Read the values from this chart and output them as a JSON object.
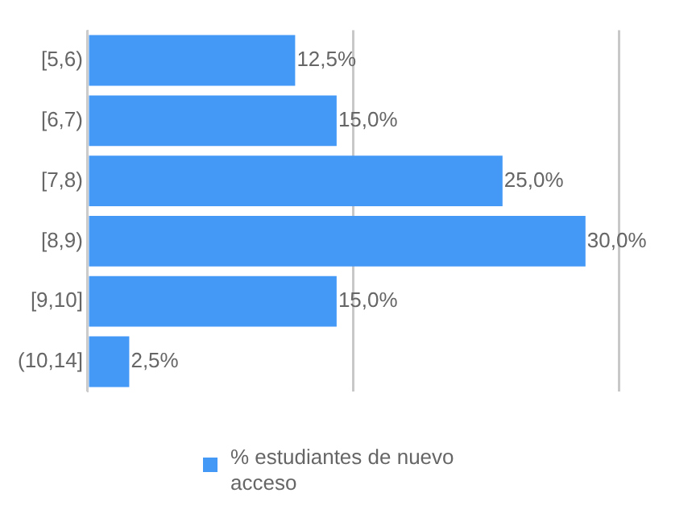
{
  "chart_data": {
    "type": "bar",
    "orientation": "horizontal",
    "categories": [
      "[5,6)",
      "[6,7)",
      "[7,8)",
      "[8,9)",
      "[9,10]",
      "(10,14]"
    ],
    "series": [
      {
        "name": "% estudiantes de nuevo acceso",
        "color": "#4499f7",
        "values": [
          12.5,
          15,
          25,
          30,
          15,
          2.5
        ],
        "value_labels": [
          "12,5%",
          "15,0%",
          "25,0%",
          "30,0%",
          "15,0%",
          "2,5%"
        ]
      }
    ],
    "xlim": [
      0,
      32
    ],
    "xticks": [
      {
        "value": 0,
        "label": null
      },
      {
        "value": 16,
        "label": null
      },
      {
        "value": 32,
        "label": null
      }
    ],
    "tick_labels": "y",
    "grid": "x",
    "legend": "bottom"
  }
}
